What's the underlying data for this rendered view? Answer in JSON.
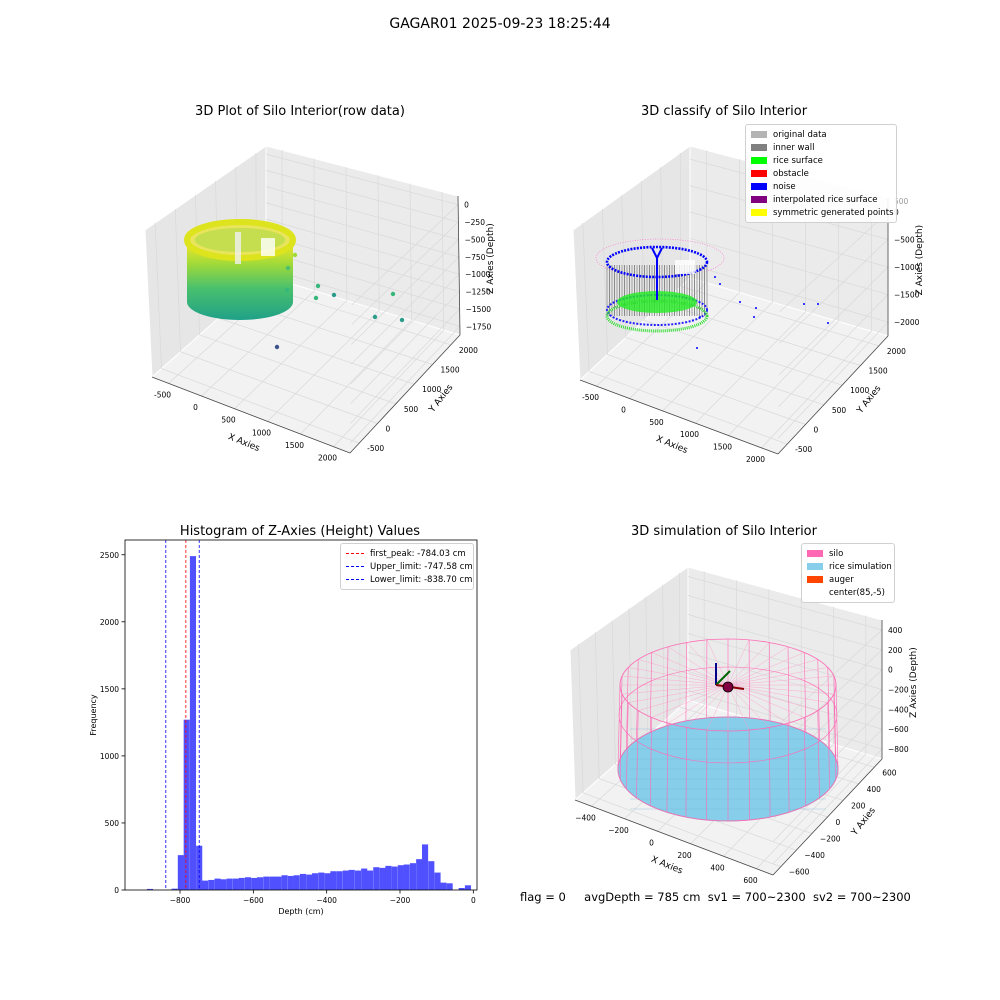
{
  "figure": {
    "suptitle": "GAGAR01 2025-09-23 18:25:44",
    "status": {
      "flag": "flag = 0",
      "avg_depth": "avgDepth = 785 cm",
      "sv1": "sv1 = 700~2300",
      "sv2": "sv2 = 700~2300"
    }
  },
  "chart_data": [
    {
      "type": "scatter",
      "projection": "3d",
      "title": "3D Plot of Silo Interior(row data)",
      "xlabel": "X Axies",
      "ylabel": "Y Axies",
      "zlabel": "Z Axies (Depth)",
      "x_ticks": [
        "-500",
        "0",
        "500",
        "1000",
        "1500",
        "2000"
      ],
      "y_ticks": [
        "-500",
        "0",
        "500",
        "1000",
        "1500",
        "2000"
      ],
      "z_ticks": [
        "0",
        "−250",
        "−500",
        "−750",
        "−1000",
        "−1250",
        "−1500",
        "−1750"
      ],
      "colormap": "viridis",
      "grid": true,
      "point_cloud": "cylinder of points centered near x=85, y=-5, radius about 700, depth 0 to -900, plus scattered outliers",
      "outlier_points": [
        {
          "x": 700,
          "y": 200,
          "z": -300
        },
        {
          "x": 900,
          "y": 400,
          "z": -850
        },
        {
          "x": 1200,
          "y": 900,
          "z": -900
        },
        {
          "x": 1600,
          "y": 1500,
          "z": -1200
        },
        {
          "x": 1800,
          "y": 1700,
          "z": -1500
        },
        {
          "x": 500,
          "y": 1200,
          "z": -1750
        }
      ]
    },
    {
      "type": "scatter",
      "projection": "3d",
      "title": "3D classify of Silo Interior",
      "xlabel": "X Axies",
      "ylabel": "Y Axies",
      "zlabel": "Z Axies (Depth)",
      "x_ticks": [
        "-500",
        "0",
        "500",
        "1000",
        "1500",
        "2000"
      ],
      "y_ticks": [
        "-500",
        "0",
        "500",
        "1000",
        "1500",
        "2000"
      ],
      "z_ticks": [
        "0",
        "−500",
        "−1000",
        "−1500",
        "−2000"
      ],
      "hidden_tick": "500",
      "legend_position": "upper-right",
      "series": [
        {
          "name": "original data",
          "color": "#b3b3b3"
        },
        {
          "name": "inner wall",
          "color": "#808080"
        },
        {
          "name": "rice surface",
          "color": "#00ff00"
        },
        {
          "name": "obstacle",
          "color": "#ff0000"
        },
        {
          "name": "noise",
          "color": "#0000ff"
        },
        {
          "name": "interpolated rice surface",
          "color": "#800080"
        },
        {
          "name": "symmetric generated points",
          "color": "#ffff00"
        }
      ],
      "grid": true
    },
    {
      "type": "bar",
      "title": "Histogram of Z-Axies (Height) Values",
      "xlabel": "Depth (cm)",
      "ylabel": "Frequency",
      "xlim": [
        -950,
        10
      ],
      "ylim": [
        0,
        2610
      ],
      "x_ticks": [
        -800,
        -600,
        -400,
        -200,
        0
      ],
      "y_ticks": [
        0,
        500,
        1000,
        1500,
        2000,
        2500
      ],
      "bar_color": "#5050ff",
      "bin_width": 16.7,
      "bins": [
        {
          "x": -890,
          "v": 8
        },
        {
          "x": -873,
          "v": 0
        },
        {
          "x": -856,
          "v": 0
        },
        {
          "x": -840,
          "v": 2
        },
        {
          "x": -823,
          "v": 10
        },
        {
          "x": -806,
          "v": 260
        },
        {
          "x": -790,
          "v": 1270
        },
        {
          "x": -773,
          "v": 2490
        },
        {
          "x": -756,
          "v": 330
        },
        {
          "x": -740,
          "v": 70
        },
        {
          "x": -723,
          "v": 75
        },
        {
          "x": -706,
          "v": 85
        },
        {
          "x": -690,
          "v": 80
        },
        {
          "x": -673,
          "v": 85
        },
        {
          "x": -656,
          "v": 85
        },
        {
          "x": -640,
          "v": 90
        },
        {
          "x": -623,
          "v": 95
        },
        {
          "x": -606,
          "v": 90
        },
        {
          "x": -590,
          "v": 95
        },
        {
          "x": -573,
          "v": 100
        },
        {
          "x": -556,
          "v": 100
        },
        {
          "x": -540,
          "v": 100
        },
        {
          "x": -523,
          "v": 110
        },
        {
          "x": -506,
          "v": 105
        },
        {
          "x": -490,
          "v": 110
        },
        {
          "x": -473,
          "v": 120
        },
        {
          "x": -456,
          "v": 115
        },
        {
          "x": -440,
          "v": 125
        },
        {
          "x": -423,
          "v": 130
        },
        {
          "x": -406,
          "v": 125
        },
        {
          "x": -390,
          "v": 140
        },
        {
          "x": -373,
          "v": 140
        },
        {
          "x": -356,
          "v": 145
        },
        {
          "x": -340,
          "v": 150
        },
        {
          "x": -323,
          "v": 145
        },
        {
          "x": -306,
          "v": 160
        },
        {
          "x": -290,
          "v": 145
        },
        {
          "x": -273,
          "v": 170
        },
        {
          "x": -256,
          "v": 165
        },
        {
          "x": -240,
          "v": 180
        },
        {
          "x": -223,
          "v": 175
        },
        {
          "x": -206,
          "v": 185
        },
        {
          "x": -190,
          "v": 190
        },
        {
          "x": -173,
          "v": 200
        },
        {
          "x": -156,
          "v": 230
        },
        {
          "x": -140,
          "v": 340
        },
        {
          "x": -123,
          "v": 215
        },
        {
          "x": -106,
          "v": 130
        },
        {
          "x": -90,
          "v": 55
        },
        {
          "x": -73,
          "v": 50
        },
        {
          "x": -56,
          "v": 0
        },
        {
          "x": -40,
          "v": 15
        },
        {
          "x": -23,
          "v": 35
        },
        {
          "x": -6,
          "v": 0
        }
      ],
      "vlines": [
        {
          "label": "first_peak: -784.03 cm",
          "x": -784.03,
          "color": "#ff0000"
        },
        {
          "label": "Upper_limit: -747.58 cm",
          "x": -747.58,
          "color": "#0000ff"
        },
        {
          "label": "Lower_limit: -838.70 cm",
          "x": -838.7,
          "color": "#0000ff"
        }
      ],
      "legend_position": "upper-right"
    },
    {
      "type": "scatter",
      "projection": "3d",
      "title": "3D simulation of Silo Interior",
      "xlabel": "X Axies",
      "ylabel": "Y Axies",
      "zlabel": "Z Axies (Depth)",
      "x_ticks": [
        "−400",
        "−200",
        "0",
        "200",
        "400",
        "600"
      ],
      "y_ticks": [
        "−600",
        "−400",
        "−200",
        "0",
        "200",
        "400",
        "600"
      ],
      "z_ticks": [
        "400",
        "200",
        "0",
        "−200",
        "−400",
        "−600",
        "−800"
      ],
      "legend_position": "upper-right",
      "series": [
        {
          "name": "silo",
          "color": "#ff69b4"
        },
        {
          "name": "rice simulation",
          "color": "#87ceeb"
        },
        {
          "name": "auger",
          "color": "#ff4500"
        },
        {
          "name": "center(85,-5)",
          "color": "#ffffff"
        }
      ],
      "silo_center": [
        85,
        -5
      ],
      "grid": true
    }
  ]
}
